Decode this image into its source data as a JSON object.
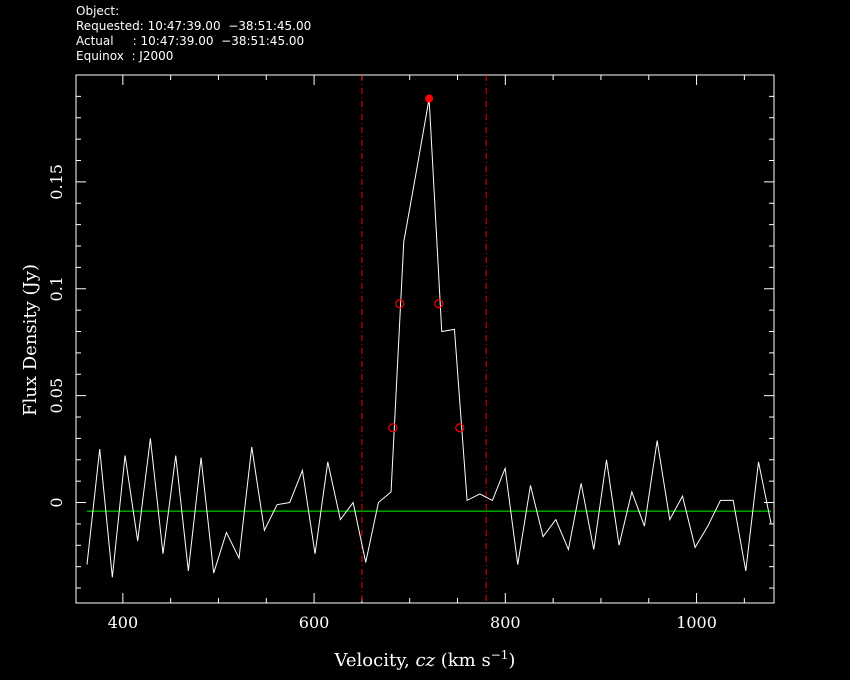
{
  "header": {
    "lines": [
      "Object:",
      "Requested: 10:47:39.00  −38:51:45.00",
      "Actual     : 10:47:39.00  −38:51:45.00",
      "Equinox  : J2000"
    ]
  },
  "chart_data": {
    "type": "line",
    "xlabel": {
      "pre": "Velocity, ",
      "var": "cz",
      "unit": " (km s",
      "exp": "−1",
      "post": ")"
    },
    "ylabel": "Flux Density (Jy)",
    "xlim": [
      351,
      1081
    ],
    "ylim": [
      -0.047,
      0.2
    ],
    "xticks": [
      400,
      600,
      800,
      1000
    ],
    "yticks": [
      0,
      0.05,
      0.1,
      0.15
    ],
    "xminorticks": [
      450,
      500,
      550,
      650,
      700,
      750,
      850,
      900,
      950,
      1050
    ],
    "yminorticks": [
      -0.04,
      -0.03,
      -0.02,
      -0.01,
      0.01,
      0.02,
      0.03,
      0.04,
      0.06,
      0.07,
      0.08,
      0.09,
      0.11,
      0.12,
      0.13,
      0.14,
      0.16,
      0.17,
      0.18,
      0.19
    ],
    "series": [
      {
        "color": "#ffffff",
        "x": [
          362.5,
          375.8,
          389.0,
          402.3,
          415.5,
          428.8,
          442.0,
          455.3,
          468.5,
          481.8,
          495.0,
          508.3,
          521.5,
          534.8,
          548.0,
          561.3,
          574.5,
          587.8,
          601.0,
          614.3,
          627.5,
          640.8,
          654.0,
          667.3,
          680.5,
          693.8,
          707.0,
          720.3,
          733.5,
          746.8,
          760.0,
          773.3,
          786.5,
          799.8,
          813.0,
          826.3,
          839.5,
          852.8,
          866.0,
          879.3,
          892.5,
          905.8,
          919.0,
          932.3,
          945.5,
          958.8,
          972.0,
          985.3,
          998.5,
          1011.8,
          1025.0,
          1038.3,
          1051.5,
          1064.8,
          1078.0
        ],
        "values": [
          -0.029,
          0.025,
          -0.035,
          0.022,
          -0.018,
          0.03,
          -0.024,
          0.022,
          -0.032,
          0.021,
          -0.033,
          -0.014,
          -0.026,
          0.026,
          -0.013,
          -0.001,
          0,
          0.015,
          -0.024,
          0.019,
          -0.008,
          0.0,
          -0.028,
          0.0,
          0.005,
          0.122,
          0.155,
          0.189,
          0.08,
          0.081,
          0.001,
          0.004,
          0.001,
          0.016,
          -0.029,
          0.008,
          -0.016,
          -0.008,
          -0.022,
          0.009,
          -0.022,
          0.02,
          -0.02,
          0.005,
          -0.011,
          0.029,
          -0.008,
          0.003,
          -0.021,
          -0.011,
          0.001,
          0.001,
          -0.032,
          0.019,
          -0.01
        ]
      }
    ],
    "baseline": {
      "x": [
        362.5,
        1078.0
      ],
      "values": [
        -0.004,
        -0.004
      ],
      "color": "#00ff00"
    },
    "vlines": {
      "x": [
        650,
        780
      ],
      "color": "#ff0000"
    },
    "markers": {
      "color": "#ff0000",
      "peak": {
        "x": 720.3,
        "y": 0.189
      },
      "points": {
        "x": [
          682.4,
          689.7,
          730.5,
          752.4
        ],
        "y": [
          0.035,
          0.093,
          0.093,
          0.035
        ]
      }
    }
  }
}
